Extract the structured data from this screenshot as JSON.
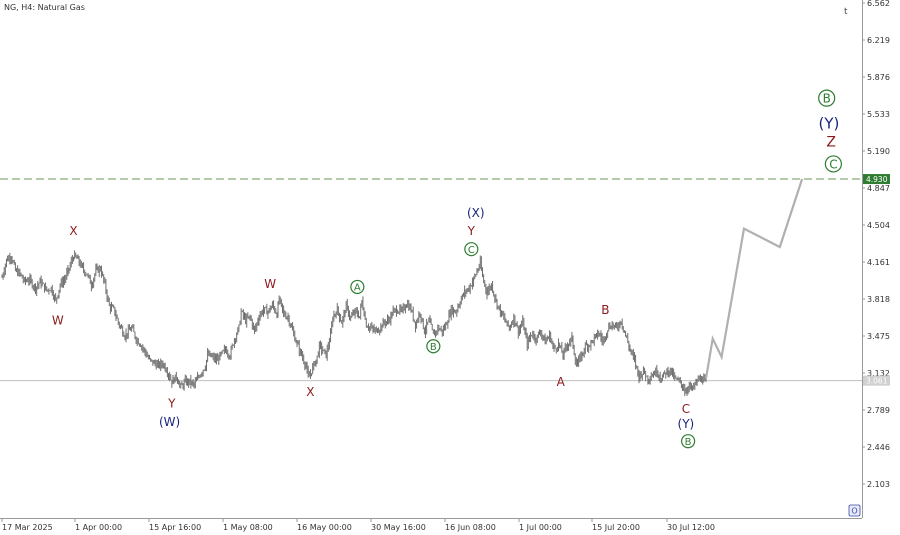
{
  "window": {
    "symbol_title": "NG, H4:  Natural Gas",
    "top_right_glyph": "t",
    "bottom_right_glyph": "O"
  },
  "colors": {
    "candles": "#6e6e6e",
    "forecast": "#b0b0b0",
    "dashed_level": "#6a9a5a",
    "current_line": "#c0c0c0",
    "dashed_tag_bg": "#2e7d32",
    "current_tag_bg": "#d0d0d0",
    "label_red": "#8b1a1a",
    "label_navy": "#1a237e",
    "label_green": "#2e7d32"
  },
  "chart_data": {
    "type": "line",
    "title": "",
    "y_axis": {
      "position": "right",
      "ticks": [
        "6.562",
        "6.219",
        "5.876",
        "5.533",
        "5.190",
        "4.847",
        "4.504",
        "4.161",
        "3.818",
        "3.475",
        "3.132",
        "2.789",
        "2.446",
        "2.103"
      ],
      "range": [
        1.9,
        6.6
      ]
    },
    "x_axis": {
      "ticks": [
        "17 Mar 2025",
        "1 Apr 00:00",
        "15 Apr 16:00",
        "1 May 08:00",
        "16 May 00:00",
        "30 May 16:00",
        "16 Jun 08:00",
        "1 Jul 00:00",
        "15 Jul 20:00",
        "30 Jul 12:00"
      ],
      "range_days": [
        0,
        165
      ]
    },
    "price_series": {
      "name": "",
      "anchors": [
        [
          0.0,
          4.02
        ],
        [
          0.5,
          4.1
        ],
        [
          1.0,
          4.18
        ],
        [
          2.0,
          4.22
        ],
        [
          3.0,
          4.08
        ],
        [
          4.0,
          4.05
        ],
        [
          5.0,
          3.98
        ],
        [
          6.0,
          4.0
        ],
        [
          7.5,
          3.92
        ],
        [
          8.5,
          3.98
        ],
        [
          10.0,
          3.9
        ],
        [
          11.0,
          3.92
        ],
        [
          12.0,
          3.8
        ],
        [
          13.0,
          3.95
        ],
        [
          14.0,
          4.0
        ],
        [
          15.0,
          4.1
        ],
        [
          16.0,
          4.22
        ],
        [
          17.0,
          4.18
        ],
        [
          18.0,
          4.1
        ],
        [
          19.0,
          4.05
        ],
        [
          20.0,
          3.95
        ],
        [
          21.0,
          4.08
        ],
        [
          22.0,
          4.1
        ],
        [
          23.0,
          3.95
        ],
        [
          24.0,
          3.75
        ],
        [
          25.0,
          3.72
        ],
        [
          26.0,
          3.6
        ],
        [
          27.5,
          3.48
        ],
        [
          29.0,
          3.55
        ],
        [
          30.0,
          3.45
        ],
        [
          31.0,
          3.4
        ],
        [
          33.0,
          3.25
        ],
        [
          35.0,
          3.2
        ],
        [
          36.0,
          3.22
        ],
        [
          37.0,
          3.15
        ],
        [
          38.0,
          3.05
        ],
        [
          39.0,
          3.1
        ],
        [
          40.0,
          3.0
        ],
        [
          41.0,
          3.05
        ],
        [
          42.0,
          3.05
        ],
        [
          43.0,
          3.02
        ],
        [
          44.0,
          3.1
        ],
        [
          45.5,
          3.2
        ],
        [
          46.0,
          3.3
        ],
        [
          47.0,
          3.28
        ],
        [
          48.0,
          3.25
        ],
        [
          50.0,
          3.35
        ],
        [
          51.0,
          3.3
        ],
        [
          52.0,
          3.45
        ],
        [
          53.0,
          3.55
        ],
        [
          53.5,
          3.7
        ],
        [
          54.5,
          3.62
        ],
        [
          55.5,
          3.65
        ],
        [
          56.5,
          3.52
        ],
        [
          57.5,
          3.66
        ],
        [
          58.5,
          3.72
        ],
        [
          59.5,
          3.7
        ],
        [
          60.5,
          3.76
        ],
        [
          61.5,
          3.68
        ],
        [
          62.0,
          3.82
        ],
        [
          63.0,
          3.68
        ],
        [
          64.0,
          3.65
        ],
        [
          65.0,
          3.52
        ],
        [
          66.0,
          3.4
        ],
        [
          67.0,
          3.3
        ],
        [
          68.0,
          3.2
        ],
        [
          68.5,
          3.08
        ],
        [
          69.5,
          3.18
        ],
        [
          70.5,
          3.28
        ],
        [
          71.0,
          3.38
        ],
        [
          72.5,
          3.3
        ],
        [
          73.5,
          3.48
        ],
        [
          74.0,
          3.65
        ],
        [
          75.0,
          3.72
        ],
        [
          76.0,
          3.6
        ],
        [
          77.0,
          3.75
        ],
        [
          78.0,
          3.64
        ],
        [
          79.0,
          3.7
        ],
        [
          80.0,
          3.66
        ],
        [
          80.5,
          3.8
        ],
        [
          81.5,
          3.58
        ],
        [
          82.5,
          3.55
        ],
        [
          83.5,
          3.52
        ],
        [
          84.5,
          3.55
        ],
        [
          85.5,
          3.6
        ],
        [
          86.5,
          3.62
        ],
        [
          87.5,
          3.7
        ],
        [
          88.5,
          3.72
        ],
        [
          89.5,
          3.7
        ],
        [
          90.5,
          3.78
        ],
        [
          91.5,
          3.72
        ],
        [
          92.5,
          3.58
        ],
        [
          93.5,
          3.7
        ],
        [
          94.5,
          3.52
        ],
        [
          95.5,
          3.62
        ],
        [
          96.5,
          3.48
        ],
        [
          97.5,
          3.55
        ],
        [
          98.5,
          3.52
        ],
        [
          99.0,
          3.55
        ],
        [
          99.5,
          3.6
        ],
        [
          100.5,
          3.72
        ],
        [
          101.5,
          3.7
        ],
        [
          102.5,
          3.8
        ],
        [
          103.5,
          3.88
        ],
        [
          104.5,
          3.92
        ],
        [
          105.5,
          4.0
        ],
        [
          106.5,
          4.1
        ],
        [
          107.0,
          4.15
        ],
        [
          107.5,
          4.02
        ],
        [
          108.5,
          3.88
        ],
        [
          109.5,
          3.95
        ],
        [
          110.5,
          3.8
        ],
        [
          111.5,
          3.7
        ],
        [
          112.5,
          3.62
        ],
        [
          113.5,
          3.55
        ],
        [
          114.5,
          3.65
        ],
        [
          115.5,
          3.52
        ],
        [
          116.5,
          3.6
        ],
        [
          117.5,
          3.4
        ],
        [
          118.5,
          3.5
        ],
        [
          119.5,
          3.45
        ],
        [
          120.5,
          3.52
        ],
        [
          121.5,
          3.42
        ],
        [
          122.5,
          3.48
        ],
        [
          123.5,
          3.35
        ],
        [
          124.5,
          3.4
        ],
        [
          125.5,
          3.3
        ],
        [
          126.5,
          3.4
        ],
        [
          127.5,
          3.45
        ],
        [
          128.5,
          3.2
        ],
        [
          129.5,
          3.28
        ],
        [
          130.5,
          3.38
        ],
        [
          131.5,
          3.4
        ],
        [
          132.5,
          3.45
        ],
        [
          133.5,
          3.5
        ],
        [
          134.5,
          3.42
        ],
        [
          135.5,
          3.55
        ],
        [
          136.5,
          3.58
        ],
        [
          137.5,
          3.55
        ],
        [
          138.5,
          3.62
        ],
        [
          139.5,
          3.48
        ],
        [
          140.5,
          3.35
        ],
        [
          141.5,
          3.25
        ],
        [
          142.5,
          3.1
        ],
        [
          143.5,
          3.15
        ],
        [
          144.5,
          3.08
        ],
        [
          145.5,
          3.12
        ],
        [
          146.5,
          3.15
        ],
        [
          147.5,
          3.08
        ],
        [
          148.5,
          3.14
        ],
        [
          149.5,
          3.16
        ],
        [
          150.5,
          3.08
        ],
        [
          151.5,
          3.05
        ],
        [
          152.5,
          3.0
        ],
        [
          153.0,
          2.95
        ],
        [
          153.5,
          3.02
        ],
        [
          154.5,
          2.98
        ],
        [
          155.5,
          3.06
        ],
        [
          156.5,
          3.08
        ],
        [
          157.5,
          3.05
        ]
      ]
    },
    "forecast_path": {
      "name": "",
      "points": [
        [
          157.5,
          3.08
        ],
        [
          159.0,
          3.45
        ],
        [
          161.0,
          3.28
        ],
        [
          166.0,
          4.47
        ],
        [
          174.0,
          4.3
        ],
        [
          179.0,
          4.93
        ]
      ]
    },
    "levels": [
      {
        "name": "",
        "value": 4.93,
        "label": "4.930",
        "style": "dashed"
      },
      {
        "name": "",
        "value": 3.061,
        "label": "3.061",
        "style": "solid"
      }
    ],
    "wave_labels": [
      {
        "text": "X",
        "x": 16.0,
        "y": 4.45,
        "color": "red",
        "circled": false
      },
      {
        "text": "W",
        "x": 12.5,
        "y": 3.62,
        "color": "red",
        "circled": false
      },
      {
        "text": "Y",
        "x": 38.0,
        "y": 2.85,
        "color": "red",
        "circled": false
      },
      {
        "text": "(W)",
        "x": 37.5,
        "y": 2.68,
        "color": "navy",
        "circled": false
      },
      {
        "text": "W",
        "x": 60.0,
        "y": 3.96,
        "color": "red",
        "circled": false
      },
      {
        "text": "X",
        "x": 69.0,
        "y": 2.96,
        "color": "red",
        "circled": false
      },
      {
        "text": "A",
        "x": 79.5,
        "y": 3.93,
        "color": "green",
        "circled": true
      },
      {
        "text": "B",
        "x": 96.5,
        "y": 3.38,
        "color": "green",
        "circled": true
      },
      {
        "text": "(X)",
        "x": 106.0,
        "y": 4.62,
        "color": "navy",
        "circled": false
      },
      {
        "text": "Y",
        "x": 105.0,
        "y": 4.45,
        "color": "red",
        "circled": false
      },
      {
        "text": "C",
        "x": 105.0,
        "y": 4.28,
        "color": "green",
        "circled": true
      },
      {
        "text": "B",
        "x": 135.0,
        "y": 3.72,
        "color": "red",
        "circled": false
      },
      {
        "text": "A",
        "x": 125.0,
        "y": 3.05,
        "color": "red",
        "circled": false
      },
      {
        "text": "C",
        "x": 153.0,
        "y": 2.8,
        "color": "red",
        "circled": false
      },
      {
        "text": "(Y)",
        "x": 153.0,
        "y": 2.66,
        "color": "navy",
        "circled": false
      },
      {
        "text": "B",
        "x": 153.5,
        "y": 2.5,
        "color": "green",
        "circled": true
      },
      {
        "text": "B",
        "x": 184.5,
        "y": 5.68,
        "color": "green",
        "circled": true
      },
      {
        "text": "(Y)",
        "x": 185.0,
        "y": 5.45,
        "color": "navy",
        "circled": false
      },
      {
        "text": "Z",
        "x": 185.5,
        "y": 5.28,
        "color": "red",
        "circled": false
      },
      {
        "text": "C",
        "x": 186.0,
        "y": 5.07,
        "color": "green",
        "circled": true
      }
    ]
  }
}
